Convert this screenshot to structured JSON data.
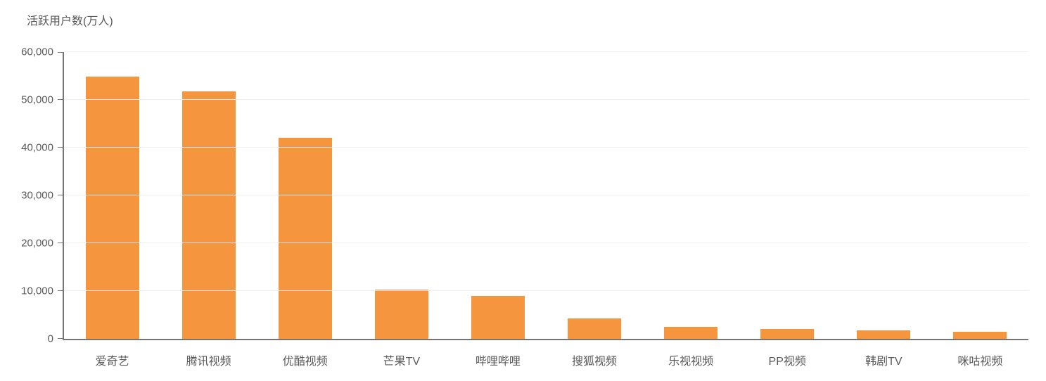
{
  "chart_data": {
    "type": "bar",
    "title": "活跃用户数(万人)",
    "categories": [
      "爱奇艺",
      "腾讯视频",
      "优酷视频",
      "芒果TV",
      "哔哩哔哩",
      "搜狐视频",
      "乐视视频",
      "PP视频",
      "韩剧TV",
      "咪咕视频"
    ],
    "values": [
      54800,
      51800,
      42000,
      10300,
      9000,
      4200,
      2500,
      2000,
      1700,
      1400
    ],
    "xlabel": "",
    "ylabel": "活跃用户数(万人)",
    "ylim": [
      0,
      60000
    ],
    "y_tick_labels": [
      "0",
      "10,000",
      "20,000",
      "30,000",
      "40,000",
      "50,000",
      "60,000"
    ],
    "grid": "horizontal-faint",
    "legend": "none",
    "colors": {
      "bar": "#F5963E",
      "axis_line": "#757575",
      "gridline": "#F0F0F0",
      "text": "#595959",
      "background": "#FFFFFF"
    }
  }
}
